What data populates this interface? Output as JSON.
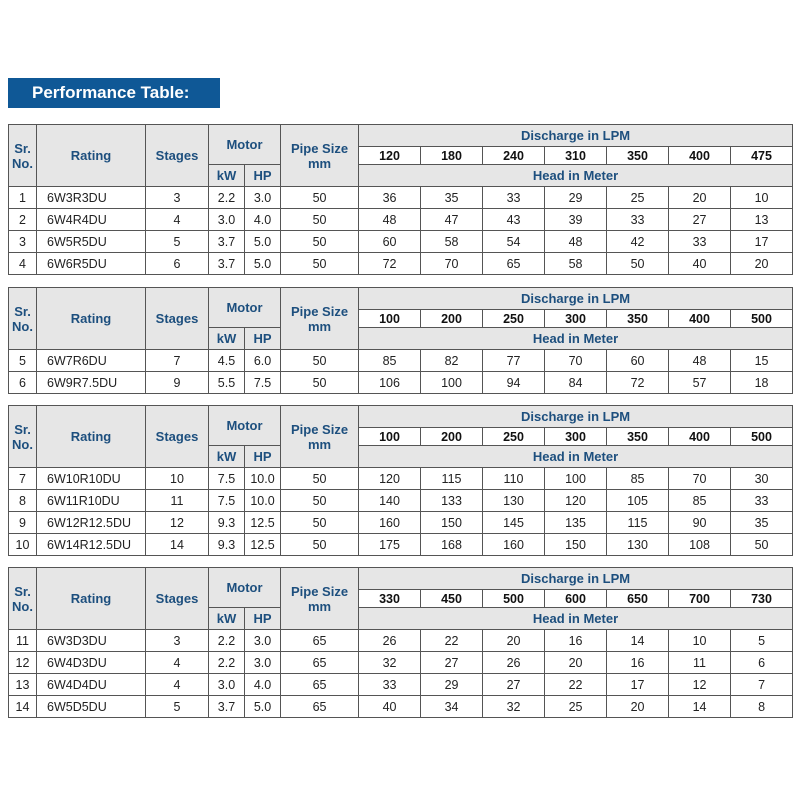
{
  "title": "Performance Table:",
  "headers": {
    "sr_no": "Sr. No.",
    "rating": "Rating",
    "stages": "Stages",
    "motor": "Motor",
    "kw": "kW",
    "hp": "HP",
    "pipe_size": "Pipe Size mm",
    "discharge": "Discharge in LPM",
    "head": "Head in Meter"
  },
  "colors": {
    "banner": "#0f5896",
    "header_text": "#1d4f7e",
    "header_bg": "#e6e6e6"
  },
  "tables": [
    {
      "discharge_lpm": [
        "120",
        "180",
        "240",
        "310",
        "350",
        "400",
        "475"
      ],
      "rows": [
        {
          "sr": "1",
          "rating": "6W3R3DU",
          "stages": "3",
          "kw": "2.2",
          "hp": "3.0",
          "pipe": "50",
          "head": [
            "36",
            "35",
            "33",
            "29",
            "25",
            "20",
            "10"
          ]
        },
        {
          "sr": "2",
          "rating": "6W4R4DU",
          "stages": "4",
          "kw": "3.0",
          "hp": "4.0",
          "pipe": "50",
          "head": [
            "48",
            "47",
            "43",
            "39",
            "33",
            "27",
            "13"
          ]
        },
        {
          "sr": "3",
          "rating": "6W5R5DU",
          "stages": "5",
          "kw": "3.7",
          "hp": "5.0",
          "pipe": "50",
          "head": [
            "60",
            "58",
            "54",
            "48",
            "42",
            "33",
            "17"
          ]
        },
        {
          "sr": "4",
          "rating": "6W6R5DU",
          "stages": "6",
          "kw": "3.7",
          "hp": "5.0",
          "pipe": "50",
          "head": [
            "72",
            "70",
            "65",
            "58",
            "50",
            "40",
            "20"
          ]
        }
      ]
    },
    {
      "discharge_lpm": [
        "100",
        "200",
        "250",
        "300",
        "350",
        "400",
        "500"
      ],
      "rows": [
        {
          "sr": "5",
          "rating": "6W7R6DU",
          "stages": "7",
          "kw": "4.5",
          "hp": "6.0",
          "pipe": "50",
          "head": [
            "85",
            "82",
            "77",
            "70",
            "60",
            "48",
            "15"
          ]
        },
        {
          "sr": "6",
          "rating": "6W9R7.5DU",
          "stages": "9",
          "kw": "5.5",
          "hp": "7.5",
          "pipe": "50",
          "head": [
            "106",
            "100",
            "94",
            "84",
            "72",
            "57",
            "18"
          ]
        }
      ]
    },
    {
      "discharge_lpm": [
        "100",
        "200",
        "250",
        "300",
        "350",
        "400",
        "500"
      ],
      "rows": [
        {
          "sr": "7",
          "rating": "6W10R10DU",
          "stages": "10",
          "kw": "7.5",
          "hp": "10.0",
          "pipe": "50",
          "head": [
            "120",
            "115",
            "110",
            "100",
            "85",
            "70",
            "30"
          ]
        },
        {
          "sr": "8",
          "rating": "6W11R10DU",
          "stages": "11",
          "kw": "7.5",
          "hp": "10.0",
          "pipe": "50",
          "head": [
            "140",
            "133",
            "130",
            "120",
            "105",
            "85",
            "33"
          ]
        },
        {
          "sr": "9",
          "rating": "6W12R12.5DU",
          "stages": "12",
          "kw": "9.3",
          "hp": "12.5",
          "pipe": "50",
          "head": [
            "160",
            "150",
            "145",
            "135",
            "115",
            "90",
            "35"
          ]
        },
        {
          "sr": "10",
          "rating": "6W14R12.5DU",
          "stages": "14",
          "kw": "9.3",
          "hp": "12.5",
          "pipe": "50",
          "head": [
            "175",
            "168",
            "160",
            "150",
            "130",
            "108",
            "50"
          ]
        }
      ]
    },
    {
      "discharge_lpm": [
        "330",
        "450",
        "500",
        "600",
        "650",
        "700",
        "730"
      ],
      "rows": [
        {
          "sr": "11",
          "rating": "6W3D3DU",
          "stages": "3",
          "kw": "2.2",
          "hp": "3.0",
          "pipe": "65",
          "head": [
            "26",
            "22",
            "20",
            "16",
            "14",
            "10",
            "5"
          ]
        },
        {
          "sr": "12",
          "rating": "6W4D3DU",
          "stages": "4",
          "kw": "2.2",
          "hp": "3.0",
          "pipe": "65",
          "head": [
            "32",
            "27",
            "26",
            "20",
            "16",
            "11",
            "6"
          ]
        },
        {
          "sr": "13",
          "rating": "6W4D4DU",
          "stages": "4",
          "kw": "3.0",
          "hp": "4.0",
          "pipe": "65",
          "head": [
            "33",
            "29",
            "27",
            "22",
            "17",
            "12",
            "7"
          ]
        },
        {
          "sr": "14",
          "rating": "6W5D5DU",
          "stages": "5",
          "kw": "3.7",
          "hp": "5.0",
          "pipe": "65",
          "head": [
            "40",
            "34",
            "32",
            "25",
            "20",
            "14",
            "8"
          ]
        }
      ]
    }
  ]
}
